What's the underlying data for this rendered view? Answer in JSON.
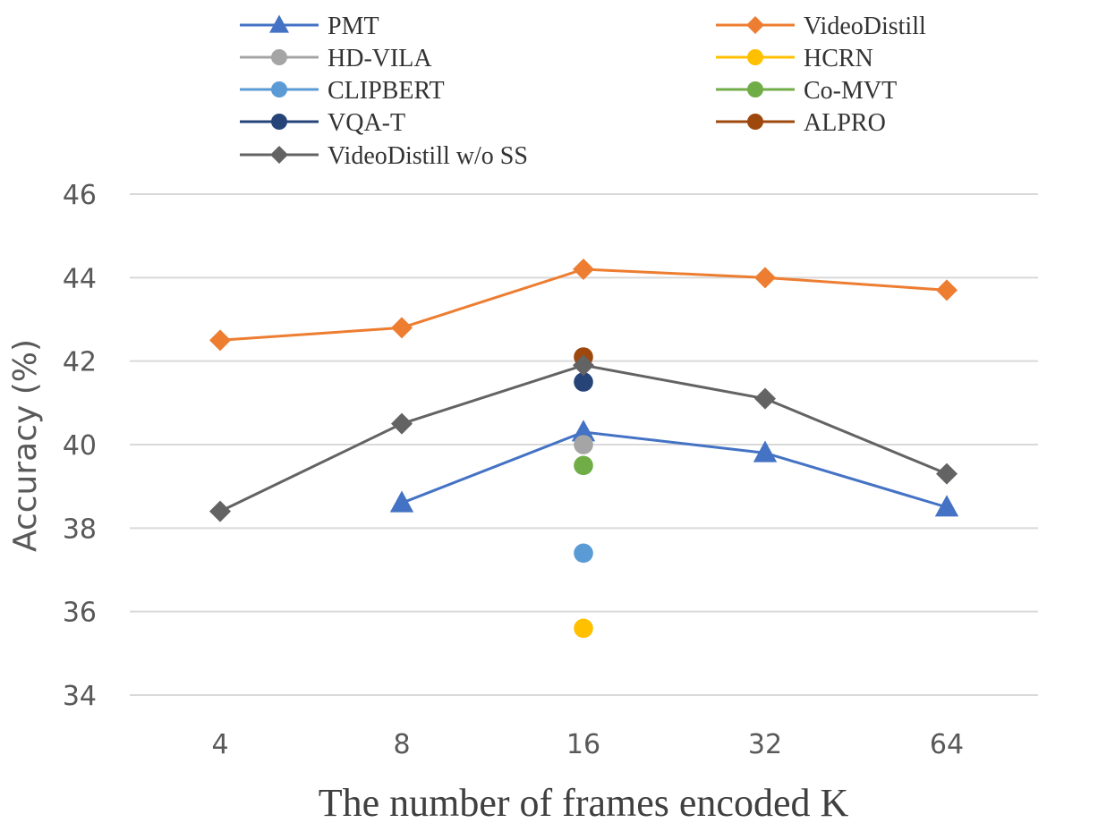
{
  "chart_data": {
    "type": "line",
    "title": "",
    "xlabel": "The number of frames encoded K",
    "ylabel": "Accuracy (%)",
    "x_type": "categorical",
    "categories": [
      "4",
      "8",
      "16",
      "32",
      "64"
    ],
    "ylim": [
      34,
      46
    ],
    "y_ticks": [
      "34",
      "36",
      "38",
      "40",
      "42",
      "44",
      "46"
    ],
    "grid": "horizontal",
    "legend_position": "top",
    "series": [
      {
        "name": "PMT",
        "color": "#4472c4",
        "marker": "triangle",
        "line": true,
        "values": [
          null,
          38.6,
          40.3,
          39.8,
          38.5
        ]
      },
      {
        "name": "VideoDistill",
        "color": "#ed7d31",
        "marker": "diamond",
        "line": true,
        "values": [
          42.5,
          42.8,
          44.2,
          44.0,
          43.7
        ]
      },
      {
        "name": "HD-VILA",
        "color": "#a5a5a5",
        "marker": "circle",
        "line": false,
        "values": [
          null,
          null,
          40.0,
          null,
          null
        ]
      },
      {
        "name": "HCRN",
        "color": "#ffc000",
        "marker": "circle",
        "line": false,
        "values": [
          null,
          null,
          35.6,
          null,
          null
        ]
      },
      {
        "name": "CLIPBERT",
        "color": "#5b9bd5",
        "marker": "circle",
        "line": false,
        "values": [
          null,
          null,
          37.4,
          null,
          null
        ]
      },
      {
        "name": "Co-MVT",
        "color": "#70ad47",
        "marker": "circle",
        "line": false,
        "values": [
          null,
          null,
          39.5,
          null,
          null
        ]
      },
      {
        "name": "VQA-T",
        "color": "#264478",
        "marker": "circle",
        "line": false,
        "values": [
          null,
          null,
          41.5,
          null,
          null
        ]
      },
      {
        "name": "ALPRO",
        "color": "#9e480e",
        "marker": "circle",
        "line": false,
        "values": [
          null,
          null,
          42.1,
          null,
          null
        ]
      },
      {
        "name": "VideoDistill w/o SS",
        "color": "#636363",
        "marker": "diamond",
        "line": true,
        "values": [
          38.4,
          40.5,
          41.9,
          41.1,
          39.3
        ]
      }
    ]
  }
}
